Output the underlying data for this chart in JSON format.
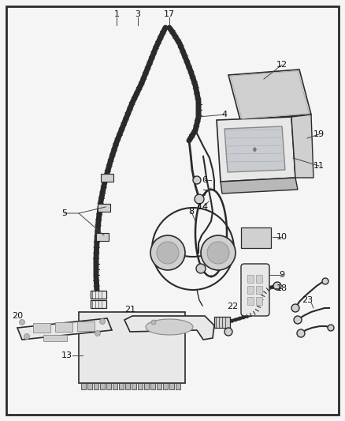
{
  "bg_color": "#f5f5f5",
  "border_color": "#1a1a1a",
  "fig_width": 4.38,
  "fig_height": 5.33,
  "dpi": 100,
  "lc": "#2a2a2a",
  "fc_light": "#e8e8e8",
  "fc_mid": "#d0d0d0",
  "fc_dark": "#b8b8b8"
}
